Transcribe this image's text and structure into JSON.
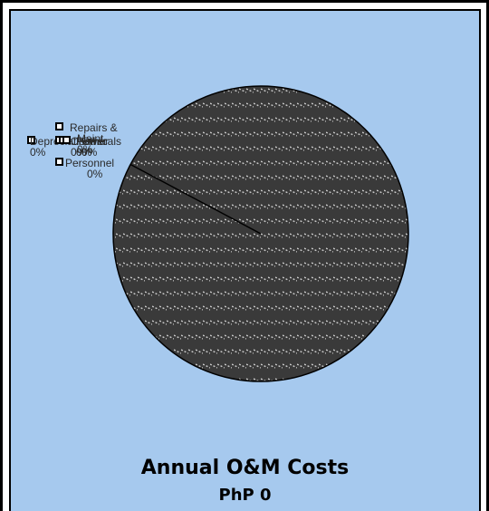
{
  "chart_data": {
    "type": "pie",
    "title": "Annual O&M Costs",
    "subtitle": "PhP  0",
    "slices": [
      {
        "name": "Repairs & Maint",
        "pct_label": "0%",
        "value": 0
      },
      {
        "name": "Depreciation",
        "pct_label": "0%",
        "value": 0
      },
      {
        "name": "Chemicals",
        "pct_label": "0%",
        "value": 0
      },
      {
        "name": "Power",
        "pct_label": "0%",
        "value": 0
      },
      {
        "name": "Other",
        "pct_label": "0%",
        "value": 0
      },
      {
        "name": "Personnel",
        "pct_label": "0%",
        "value": 0
      }
    ],
    "legend_visible": false
  },
  "colors": {
    "plot_background": "#a6c9ee",
    "pie_fill": "#3a3a3a",
    "pie_hatch": "#cfcfcf",
    "outline": "#000000"
  }
}
